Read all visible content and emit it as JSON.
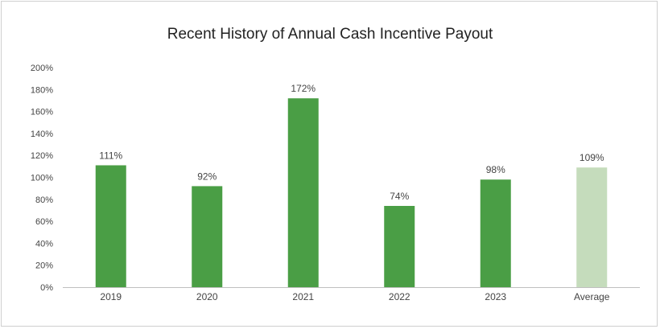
{
  "chart_data": {
    "type": "bar",
    "title": "Recent History of Annual Cash Incentive Payout",
    "categories": [
      "2019",
      "2020",
      "2021",
      "2022",
      "2023",
      "Average"
    ],
    "values": [
      111,
      92,
      172,
      74,
      98,
      109
    ],
    "data_labels": [
      "111%",
      "92%",
      "172%",
      "74%",
      "98%",
      "109%"
    ],
    "y_ticks": [
      {
        "value": 0,
        "label": "0%"
      },
      {
        "value": 20,
        "label": "20%"
      },
      {
        "value": 40,
        "label": "40%"
      },
      {
        "value": 60,
        "label": "60%"
      },
      {
        "value": 80,
        "label": "80%"
      },
      {
        "value": 100,
        "label": "100%"
      },
      {
        "value": 120,
        "label": "120%"
      },
      {
        "value": 140,
        "label": "140%"
      },
      {
        "value": 160,
        "label": "160%"
      },
      {
        "value": 180,
        "label": "180%"
      },
      {
        "value": 200,
        "label": "200%"
      }
    ],
    "ylim": [
      0,
      200
    ],
    "grid": false,
    "legend": "none",
    "colors": {
      "bar": "#4a9e45",
      "highlight_bar": "#c5dcbc",
      "axis": "#bfbfbf",
      "text": "#444444"
    },
    "highlight_category": "Average"
  }
}
